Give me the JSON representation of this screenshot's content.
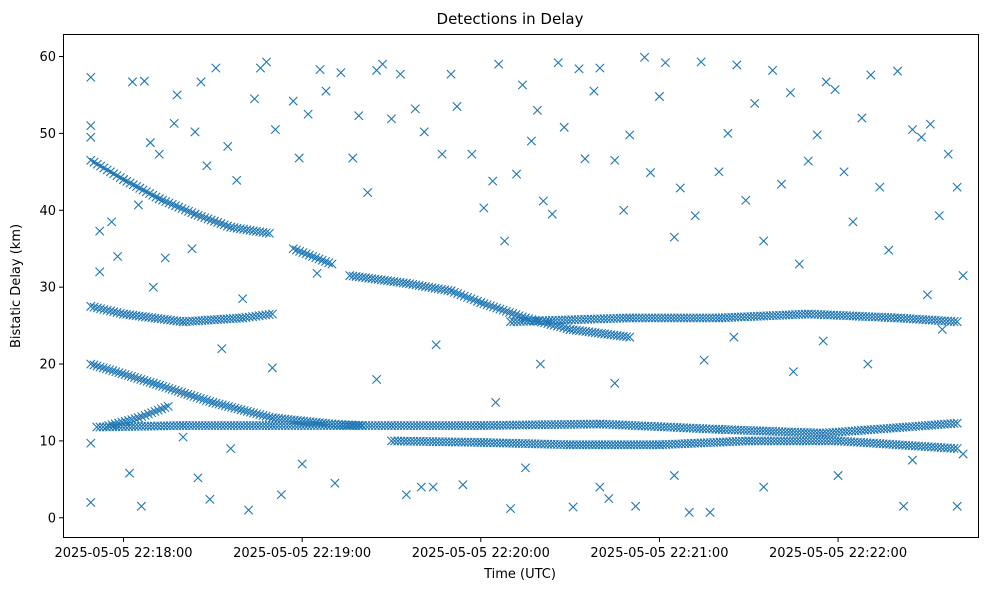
{
  "chart_data": {
    "type": "scatter",
    "title": "Detections in Delay",
    "xlabel": "Time (UTC)",
    "ylabel": "Bistatic Delay (km)",
    "marker": "x",
    "color": "#1f77b4",
    "grid": false,
    "legend": "none",
    "xlim": [
      "2025-05-05 22:17:40",
      "2025-05-05 22:22:47"
    ],
    "ylim": [
      -2.5,
      62.8
    ],
    "x_ticks": [
      "2025-05-05 22:18:00",
      "2025-05-05 22:19:00",
      "2025-05-05 22:20:00",
      "2025-05-05 22:21:00",
      "2025-05-05 22:22:00"
    ],
    "y_ticks": [
      0,
      10,
      20,
      30,
      40,
      50,
      60
    ],
    "tracks": [
      {
        "x": [
          "2025-05-05 22:17:49",
          "2025-05-05 22:18:00",
          "2025-05-05 22:18:12",
          "2025-05-05 22:18:24",
          "2025-05-05 22:18:36",
          "2025-05-05 22:18:49"
        ],
        "y": [
          46.5,
          44.0,
          41.5,
          39.5,
          37.8,
          37.0
        ]
      },
      {
        "x": [
          "2025-05-05 22:18:57",
          "2025-05-05 22:19:10"
        ],
        "y": [
          35.0,
          33.0
        ]
      },
      {
        "x": [
          "2025-05-05 22:19:16",
          "2025-05-05 22:19:35",
          "2025-05-05 22:19:50",
          "2025-05-05 22:20:00",
          "2025-05-05 22:20:15",
          "2025-05-05 22:20:30",
          "2025-05-05 22:20:50"
        ],
        "y": [
          31.5,
          30.5,
          29.5,
          28.0,
          26.0,
          24.5,
          23.5
        ]
      },
      {
        "x": [
          "2025-05-05 22:17:49",
          "2025-05-05 22:18:10",
          "2025-05-05 22:18:30",
          "2025-05-05 22:18:50",
          "2025-05-05 22:19:10",
          "2025-05-05 22:19:20"
        ],
        "y": [
          20.0,
          17.5,
          15.0,
          13.0,
          12.2,
          12.0
        ]
      },
      {
        "x": [
          "2025-05-05 22:17:49",
          "2025-05-05 22:18:00",
          "2025-05-05 22:18:20",
          "2025-05-05 22:18:40",
          "2025-05-05 22:18:50"
        ],
        "y": [
          27.5,
          26.5,
          25.5,
          26.0,
          26.5
        ]
      },
      {
        "x": [
          "2025-05-05 22:20:10",
          "2025-05-05 22:20:50",
          "2025-05-05 22:21:20",
          "2025-05-05 22:21:50",
          "2025-05-05 22:22:20",
          "2025-05-05 22:22:40"
        ],
        "y": [
          25.5,
          26.0,
          26.0,
          26.5,
          26.0,
          25.5
        ]
      },
      {
        "x": [
          "2025-05-05 22:17:51",
          "2025-05-05 22:18:20",
          "2025-05-05 22:18:50",
          "2025-05-05 22:19:30",
          "2025-05-05 22:20:00",
          "2025-05-05 22:20:40",
          "2025-05-05 22:21:20",
          "2025-05-05 22:21:55",
          "2025-05-05 22:22:40"
        ],
        "y": [
          11.8,
          12.0,
          12.0,
          12.0,
          12.0,
          12.2,
          11.5,
          11.0,
          12.3
        ]
      },
      {
        "x": [
          "2025-05-05 22:19:30",
          "2025-05-05 22:20:00",
          "2025-05-05 22:20:30",
          "2025-05-05 22:21:00",
          "2025-05-05 22:21:30",
          "2025-05-05 22:22:00",
          "2025-05-05 22:22:40"
        ],
        "y": [
          10.0,
          9.8,
          9.5,
          9.5,
          10.0,
          10.0,
          9.0
        ]
      },
      {
        "x": [
          "2025-05-05 22:17:55",
          "2025-05-05 22:18:05",
          "2025-05-05 22:18:15"
        ],
        "y": [
          12.0,
          13.0,
          14.5
        ]
      }
    ],
    "scatter_points": [
      [
        "2025-05-05 22:17:49",
        57.3
      ],
      [
        "2025-05-05 22:17:49",
        51.0
      ],
      [
        "2025-05-05 22:17:49",
        49.5
      ],
      [
        "2025-05-05 22:17:49",
        9.7
      ],
      [
        "2025-05-05 22:17:49",
        2.0
      ],
      [
        "2025-05-05 22:17:52",
        37.3
      ],
      [
        "2025-05-05 22:17:52",
        32.0
      ],
      [
        "2025-05-05 22:17:56",
        38.5
      ],
      [
        "2025-05-05 22:17:58",
        34.0
      ],
      [
        "2025-05-05 22:18:02",
        5.8
      ],
      [
        "2025-05-05 22:18:03",
        56.7
      ],
      [
        "2025-05-05 22:18:05",
        40.7
      ],
      [
        "2025-05-05 22:18:06",
        1.5
      ],
      [
        "2025-05-05 22:18:07",
        56.8
      ],
      [
        "2025-05-05 22:18:09",
        48.8
      ],
      [
        "2025-05-05 22:18:12",
        47.3
      ],
      [
        "2025-05-05 22:18:14",
        33.8
      ],
      [
        "2025-05-05 22:18:17",
        51.3
      ],
      [
        "2025-05-05 22:18:18",
        55.0
      ],
      [
        "2025-05-05 22:18:20",
        10.5
      ],
      [
        "2025-05-05 22:18:23",
        35.0
      ],
      [
        "2025-05-05 22:18:24",
        50.2
      ],
      [
        "2025-05-05 22:18:26",
        56.7
      ],
      [
        "2025-05-05 22:18:28",
        45.8
      ],
      [
        "2025-05-05 22:18:29",
        2.4
      ],
      [
        "2025-05-05 22:18:31",
        58.5
      ],
      [
        "2025-05-05 22:18:33",
        22.0
      ],
      [
        "2025-05-05 22:18:35",
        48.3
      ],
      [
        "2025-05-05 22:18:36",
        9.0
      ],
      [
        "2025-05-05 22:18:38",
        43.9
      ],
      [
        "2025-05-05 22:18:42",
        1.0
      ],
      [
        "2025-05-05 22:18:44",
        54.5
      ],
      [
        "2025-05-05 22:18:46",
        58.5
      ],
      [
        "2025-05-05 22:18:48",
        59.3
      ],
      [
        "2025-05-05 22:18:51",
        50.5
      ],
      [
        "2025-05-05 22:18:53",
        3.0
      ],
      [
        "2025-05-05 22:18:57",
        54.2
      ],
      [
        "2025-05-05 22:18:59",
        46.8
      ],
      [
        "2025-05-05 22:19:02",
        52.5
      ],
      [
        "2025-05-05 22:19:06",
        58.3
      ],
      [
        "2025-05-05 22:19:08",
        55.5
      ],
      [
        "2025-05-05 22:19:11",
        4.5
      ],
      [
        "2025-05-05 22:19:13",
        57.9
      ],
      [
        "2025-05-05 22:19:17",
        46.8
      ],
      [
        "2025-05-05 22:19:19",
        52.3
      ],
      [
        "2025-05-05 22:19:22",
        42.3
      ],
      [
        "2025-05-05 22:19:25",
        58.2
      ],
      [
        "2025-05-05 22:19:27",
        59.0
      ],
      [
        "2025-05-05 22:19:30",
        51.9
      ],
      [
        "2025-05-05 22:19:33",
        57.7
      ],
      [
        "2025-05-05 22:19:35",
        3.0
      ],
      [
        "2025-05-05 22:19:38",
        53.2
      ],
      [
        "2025-05-05 22:19:41",
        50.2
      ],
      [
        "2025-05-05 22:19:44",
        4.0
      ],
      [
        "2025-05-05 22:19:47",
        47.3
      ],
      [
        "2025-05-05 22:19:50",
        57.7
      ],
      [
        "2025-05-05 22:19:52",
        53.5
      ],
      [
        "2025-05-05 22:19:54",
        4.3
      ],
      [
        "2025-05-05 22:19:57",
        47.3
      ],
      [
        "2025-05-05 22:20:01",
        40.3
      ],
      [
        "2025-05-05 22:20:04",
        43.8
      ],
      [
        "2025-05-05 22:20:06",
        59.0
      ],
      [
        "2025-05-05 22:20:08",
        36.0
      ],
      [
        "2025-05-05 22:20:10",
        1.2
      ],
      [
        "2025-05-05 22:20:12",
        44.7
      ],
      [
        "2025-05-05 22:20:14",
        56.3
      ],
      [
        "2025-05-05 22:20:17",
        49.0
      ],
      [
        "2025-05-05 22:20:19",
        53.0
      ],
      [
        "2025-05-05 22:20:21",
        41.2
      ],
      [
        "2025-05-05 22:20:24",
        39.5
      ],
      [
        "2025-05-05 22:20:26",
        59.2
      ],
      [
        "2025-05-05 22:20:28",
        50.8
      ],
      [
        "2025-05-05 22:20:31",
        1.4
      ],
      [
        "2025-05-05 22:20:33",
        58.4
      ],
      [
        "2025-05-05 22:20:35",
        46.7
      ],
      [
        "2025-05-05 22:20:38",
        55.5
      ],
      [
        "2025-05-05 22:20:40",
        58.5
      ],
      [
        "2025-05-05 22:20:43",
        2.5
      ],
      [
        "2025-05-05 22:20:45",
        46.5
      ],
      [
        "2025-05-05 22:20:48",
        40.0
      ],
      [
        "2025-05-05 22:20:50",
        49.8
      ],
      [
        "2025-05-05 22:20:52",
        1.5
      ],
      [
        "2025-05-05 22:20:55",
        59.9
      ],
      [
        "2025-05-05 22:20:57",
        44.9
      ],
      [
        "2025-05-05 22:21:00",
        54.8
      ],
      [
        "2025-05-05 22:21:02",
        59.2
      ],
      [
        "2025-05-05 22:21:05",
        36.5
      ],
      [
        "2025-05-05 22:21:07",
        42.9
      ],
      [
        "2025-05-05 22:21:10",
        0.7
      ],
      [
        "2025-05-05 22:21:12",
        39.3
      ],
      [
        "2025-05-05 22:21:14",
        59.3
      ],
      [
        "2025-05-05 22:21:17",
        0.7
      ],
      [
        "2025-05-05 22:21:20",
        45.0
      ],
      [
        "2025-05-05 22:21:23",
        50.0
      ],
      [
        "2025-05-05 22:21:26",
        58.9
      ],
      [
        "2025-05-05 22:21:29",
        41.3
      ],
      [
        "2025-05-05 22:21:32",
        53.9
      ],
      [
        "2025-05-05 22:21:35",
        36.0
      ],
      [
        "2025-05-05 22:21:38",
        58.2
      ],
      [
        "2025-05-05 22:21:41",
        43.4
      ],
      [
        "2025-05-05 22:21:44",
        55.3
      ],
      [
        "2025-05-05 22:21:47",
        33.0
      ],
      [
        "2025-05-05 22:21:50",
        46.4
      ],
      [
        "2025-05-05 22:21:53",
        49.8
      ],
      [
        "2025-05-05 22:21:56",
        56.7
      ],
      [
        "2025-05-05 22:21:59",
        55.7
      ],
      [
        "2025-05-05 22:22:02",
        45.0
      ],
      [
        "2025-05-05 22:22:05",
        38.5
      ],
      [
        "2025-05-05 22:22:08",
        52.0
      ],
      [
        "2025-05-05 22:22:11",
        57.6
      ],
      [
        "2025-05-05 22:22:14",
        43.0
      ],
      [
        "2025-05-05 22:22:17",
        34.8
      ],
      [
        "2025-05-05 22:22:20",
        58.1
      ],
      [
        "2025-05-05 22:22:22",
        1.5
      ],
      [
        "2025-05-05 22:22:25",
        50.5
      ],
      [
        "2025-05-05 22:22:28",
        49.5
      ],
      [
        "2025-05-05 22:22:31",
        51.2
      ],
      [
        "2025-05-05 22:22:34",
        39.3
      ],
      [
        "2025-05-05 22:22:37",
        47.3
      ],
      [
        "2025-05-05 22:22:40",
        43.0
      ],
      [
        "2025-05-05 22:22:40",
        1.5
      ],
      [
        "2025-05-05 22:22:42",
        31.5
      ],
      [
        "2025-05-05 22:22:42",
        8.3
      ],
      [
        "2025-05-05 22:18:10",
        30.0
      ],
      [
        "2025-05-05 22:18:40",
        28.5
      ],
      [
        "2025-05-05 22:19:05",
        31.8
      ],
      [
        "2025-05-05 22:19:45",
        22.5
      ],
      [
        "2025-05-05 22:20:20",
        20.0
      ],
      [
        "2025-05-05 22:20:45",
        17.5
      ],
      [
        "2025-05-05 22:21:15",
        20.5
      ],
      [
        "2025-05-05 22:21:45",
        19.0
      ],
      [
        "2025-05-05 22:22:10",
        20.0
      ],
      [
        "2025-05-05 22:22:30",
        29.0
      ],
      [
        "2025-05-05 22:18:25",
        5.2
      ],
      [
        "2025-05-05 22:19:00",
        7.0
      ],
      [
        "2025-05-05 22:19:40",
        4.0
      ],
      [
        "2025-05-05 22:20:15",
        6.5
      ],
      [
        "2025-05-05 22:20:40",
        4.0
      ],
      [
        "2025-05-05 22:21:05",
        5.5
      ],
      [
        "2025-05-05 22:21:35",
        4.0
      ],
      [
        "2025-05-05 22:22:00",
        5.5
      ],
      [
        "2025-05-05 22:22:25",
        7.5
      ],
      [
        "2025-05-05 22:18:50",
        19.5
      ],
      [
        "2025-05-05 22:19:25",
        18.0
      ],
      [
        "2025-05-05 22:20:05",
        15.0
      ],
      [
        "2025-05-05 22:21:25",
        23.5
      ],
      [
        "2025-05-05 22:21:55",
        23.0
      ],
      [
        "2025-05-05 22:22:35",
        24.5
      ]
    ]
  }
}
